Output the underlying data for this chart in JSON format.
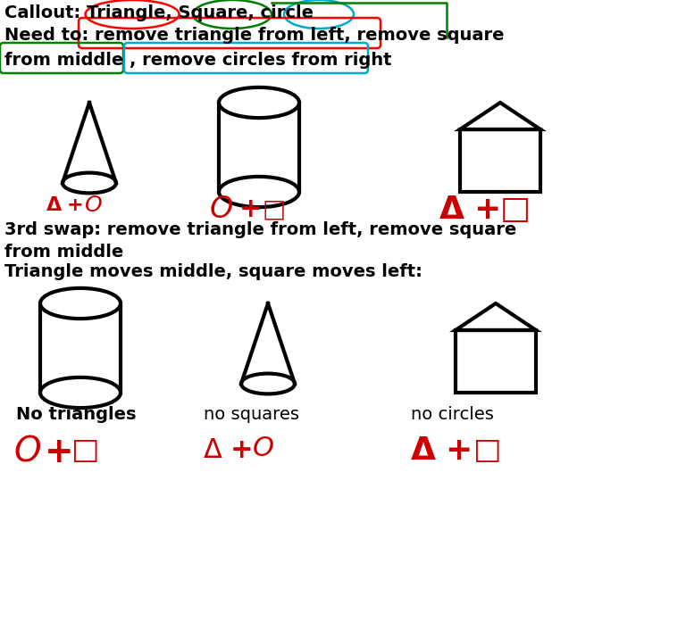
{
  "bg_color": "#ffffff",
  "text_color": "#000000",
  "red_color": "#cc0000",
  "title_line1": "Callout: Triangle, Square, circle",
  "title_line2": "Need to: remove triangle from left, remove square",
  "title_line3": "from middle , remove circles from right",
  "swap_text1": "3rd swap: remove triangle from left, remove square",
  "swap_text2": "from middle",
  "swap_text3": "Triangle moves middle, square moves left:",
  "label1": "No triangles",
  "label2": "no squares",
  "label3": "no circles"
}
